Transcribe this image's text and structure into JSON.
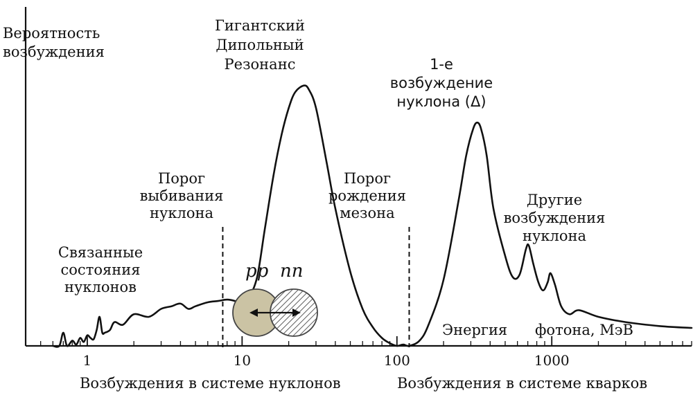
{
  "y_axis_label": [
    "Вероятность",
    "возбуждения"
  ],
  "x_axis": {
    "scale": "log",
    "ticks": [
      "1",
      "10",
      "100",
      "1000"
    ],
    "tick_values": [
      1,
      10,
      100,
      1000
    ],
    "energy_label": "Энергия",
    "photon_label": "фотона, МэВ"
  },
  "bottom_labels": {
    "nucleon": "Возбуждения в системе нуклонов",
    "quark": "Возбуждения в системе кварков"
  },
  "annotations": {
    "bound_states": [
      "Связанные",
      "состояния",
      "нуклонов"
    ],
    "knockout_threshold": [
      "Порог",
      "выбивания",
      "нуклона"
    ],
    "giant_resonance": [
      "Гигантский",
      "Дипольный",
      "Резонанс"
    ],
    "meson_threshold": [
      "Порог",
      "рождения",
      "мезона"
    ],
    "first_excitation": [
      "1-е",
      "возбуждение",
      "нуклона (Δ)"
    ],
    "other_excitations": [
      "Другие",
      "возбуждения",
      "нуклона"
    ]
  },
  "thresholds_mev": {
    "knockout": 7.5,
    "meson": 120
  },
  "inset": {
    "pp_label": "pp",
    "nn_label": "nn",
    "pp_color": "#cbc3a4",
    "nn_fill": "hatched"
  },
  "chart_data": {
    "type": "line",
    "xscale": "log",
    "xlim": [
      0.4,
      8000
    ],
    "ylim": [
      0,
      1
    ],
    "series": [
      {
        "x": [
          0.6,
          0.66,
          0.7,
          0.74,
          0.8,
          0.85,
          0.9,
          0.95,
          1.0,
          1.05,
          1.1,
          1.15,
          1.2,
          1.25,
          1.3,
          1.4,
          1.5,
          1.7,
          2.0,
          2.5,
          3.0,
          3.5,
          4.0,
          4.5,
          5.0,
          6.0,
          7.0,
          8.0,
          9.0,
          10.0,
          11.0,
          12.5,
          14.0,
          16.0,
          18.0,
          20.0,
          22.0,
          25.0,
          27.0,
          30.0,
          35.0,
          40.0,
          50.0,
          60.0,
          70.0,
          80.0,
          90.0,
          100.0,
          110.0,
          120.0,
          140.0,
          160.0,
          200.0,
          250.0,
          280.0,
          310.0,
          330.0,
          350.0,
          380.0,
          420.0,
          500.0,
          560.0,
          620.0,
          680.0,
          710.0,
          760.0,
          820.0,
          880.0,
          940.0,
          980.0,
          1050.0,
          1150.0,
          1300.0,
          1500.0,
          2000.0,
          3000.0,
          5000.0,
          8000.0
        ],
        "y": [
          0.0,
          0.0,
          0.05,
          0.0,
          0.02,
          0.005,
          0.03,
          0.015,
          0.04,
          0.03,
          0.025,
          0.06,
          0.11,
          0.05,
          0.05,
          0.06,
          0.09,
          0.08,
          0.12,
          0.11,
          0.14,
          0.15,
          0.16,
          0.14,
          0.15,
          0.165,
          0.17,
          0.175,
          0.17,
          0.16,
          0.18,
          0.26,
          0.44,
          0.65,
          0.8,
          0.9,
          0.96,
          0.985,
          0.97,
          0.9,
          0.7,
          0.52,
          0.28,
          0.14,
          0.07,
          0.03,
          0.01,
          0.0,
          0.005,
          0.0,
          0.02,
          0.08,
          0.25,
          0.55,
          0.72,
          0.82,
          0.845,
          0.82,
          0.72,
          0.52,
          0.34,
          0.26,
          0.27,
          0.365,
          0.38,
          0.31,
          0.24,
          0.21,
          0.24,
          0.275,
          0.23,
          0.15,
          0.12,
          0.135,
          0.11,
          0.09,
          0.075,
          0.068
        ]
      }
    ]
  }
}
